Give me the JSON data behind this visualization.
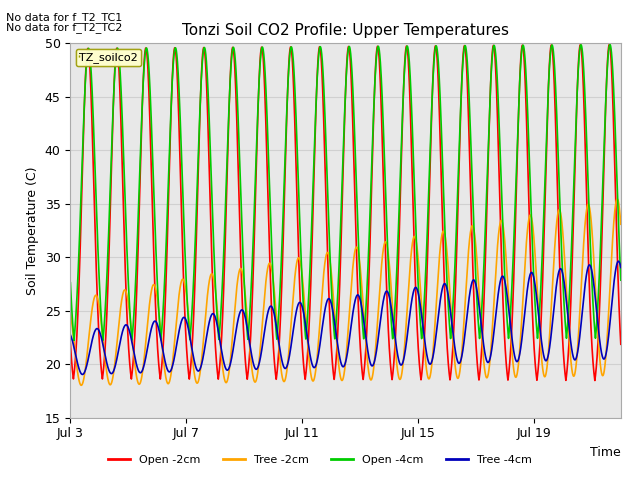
{
  "title": "Tonzi Soil CO2 Profile: Upper Temperatures",
  "ylabel": "Soil Temperature (C)",
  "xlabel": "Time",
  "ylim": [
    15,
    50
  ],
  "xlim": [
    0,
    19
  ],
  "xtick_positions": [
    0,
    4,
    8,
    12,
    16
  ],
  "xtick_labels": [
    "Jul 3",
    "Jul 7",
    "Jul 11",
    "Jul 15",
    "Jul 19"
  ],
  "ytick_values": [
    15,
    20,
    25,
    30,
    35,
    40,
    45,
    50
  ],
  "grid_color": "#d0d0d0",
  "plot_bg_color": "#e8e8e8",
  "fig_bg_color": "#ffffff",
  "annotation1": "No data for f_T2_TC1",
  "annotation2": "No data for f_T2_TC2",
  "legend_box_label": "TZ_soilco2",
  "series": [
    {
      "label": "Open -2cm",
      "color": "#ff0000",
      "lw": 1.2
    },
    {
      "label": "Tree -2cm",
      "color": "#ffa500",
      "lw": 1.2
    },
    {
      "label": "Open -4cm",
      "color": "#00cc00",
      "lw": 1.2
    },
    {
      "label": "Tree -4cm",
      "color": "#0000bb",
      "lw": 1.2
    }
  ],
  "n_days": 19,
  "pts_per_day": 288
}
